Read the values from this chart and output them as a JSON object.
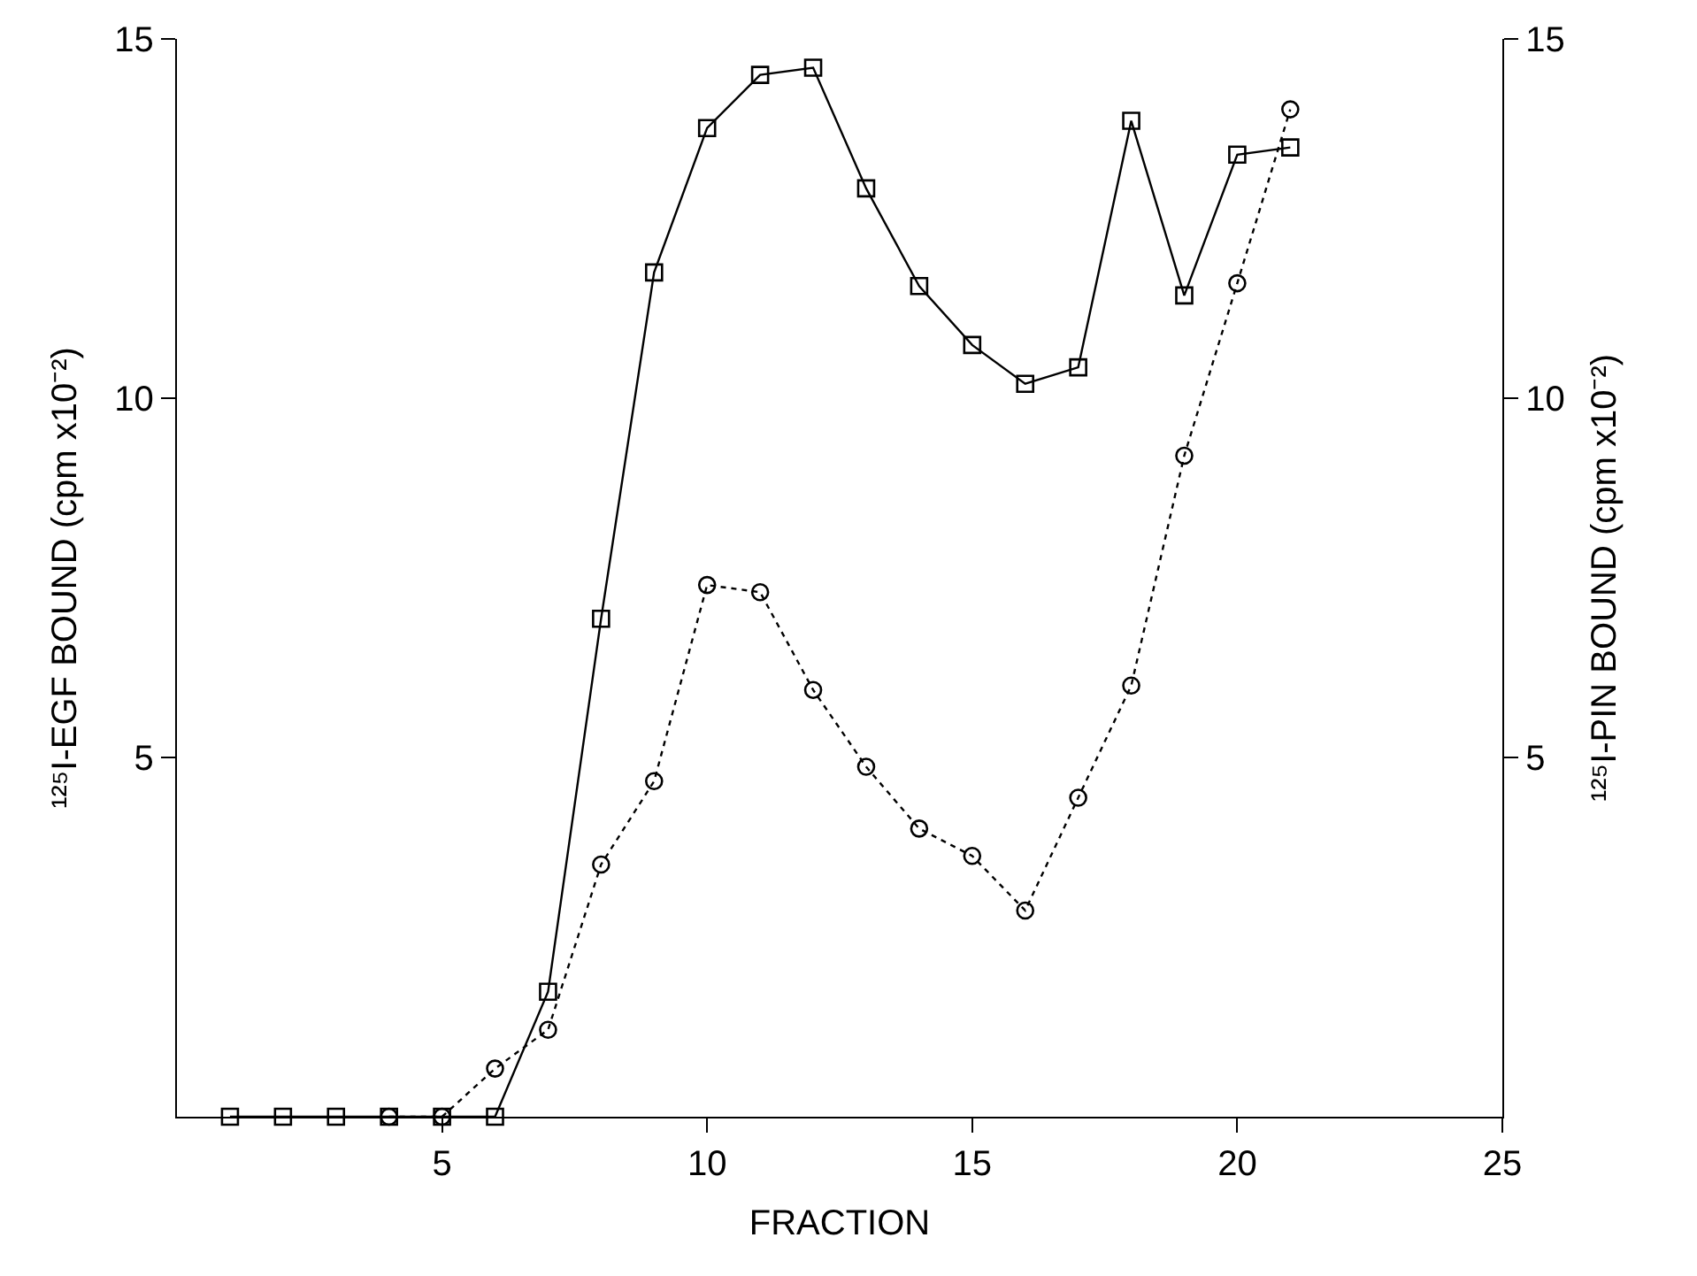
{
  "chart_data": {
    "type": "line",
    "xlabel": "FRACTION",
    "ylabel": "¹²⁵I-EGF BOUND (cpm x10⁻²)",
    "y2label": "¹²⁵I-PIN BOUND (cpm x10⁻²)",
    "xlim": [
      0,
      25
    ],
    "xticks": [
      5,
      10,
      15,
      20,
      25
    ],
    "ylim": [
      0,
      15
    ],
    "yticks": [
      5,
      10,
      15
    ],
    "y2lim": [
      0,
      15
    ],
    "y2ticks": [
      5,
      10,
      15
    ],
    "series": [
      {
        "color": "#000000",
        "marker": "square",
        "line_style": "solid",
        "x": [
          1,
          2,
          3,
          4,
          5,
          6,
          7,
          8,
          9,
          10,
          11,
          12,
          13,
          14,
          15,
          16,
          17,
          18,
          19,
          20,
          21
        ],
        "values": [
          0,
          0,
          0,
          0,
          0,
          0,
          1.74,
          6.93,
          11.75,
          13.76,
          14.5,
          14.6,
          12.92,
          11.56,
          10.74,
          10.2,
          10.43,
          13.86,
          11.43,
          13.39,
          13.49
        ]
      },
      {
        "color": "#000000",
        "marker": "circle",
        "line_style": "dotted",
        "axis": "y2",
        "x": [
          4,
          5,
          6,
          7,
          8,
          9,
          10,
          11,
          12,
          13,
          14,
          15,
          16,
          17,
          18,
          19,
          20,
          21
        ],
        "values": [
          0,
          0,
          0.67,
          1.21,
          3.51,
          4.67,
          7.4,
          7.3,
          5.94,
          4.87,
          4.01,
          3.63,
          2.87,
          4.44,
          6.0,
          9.2,
          11.6,
          14.02
        ]
      }
    ]
  }
}
